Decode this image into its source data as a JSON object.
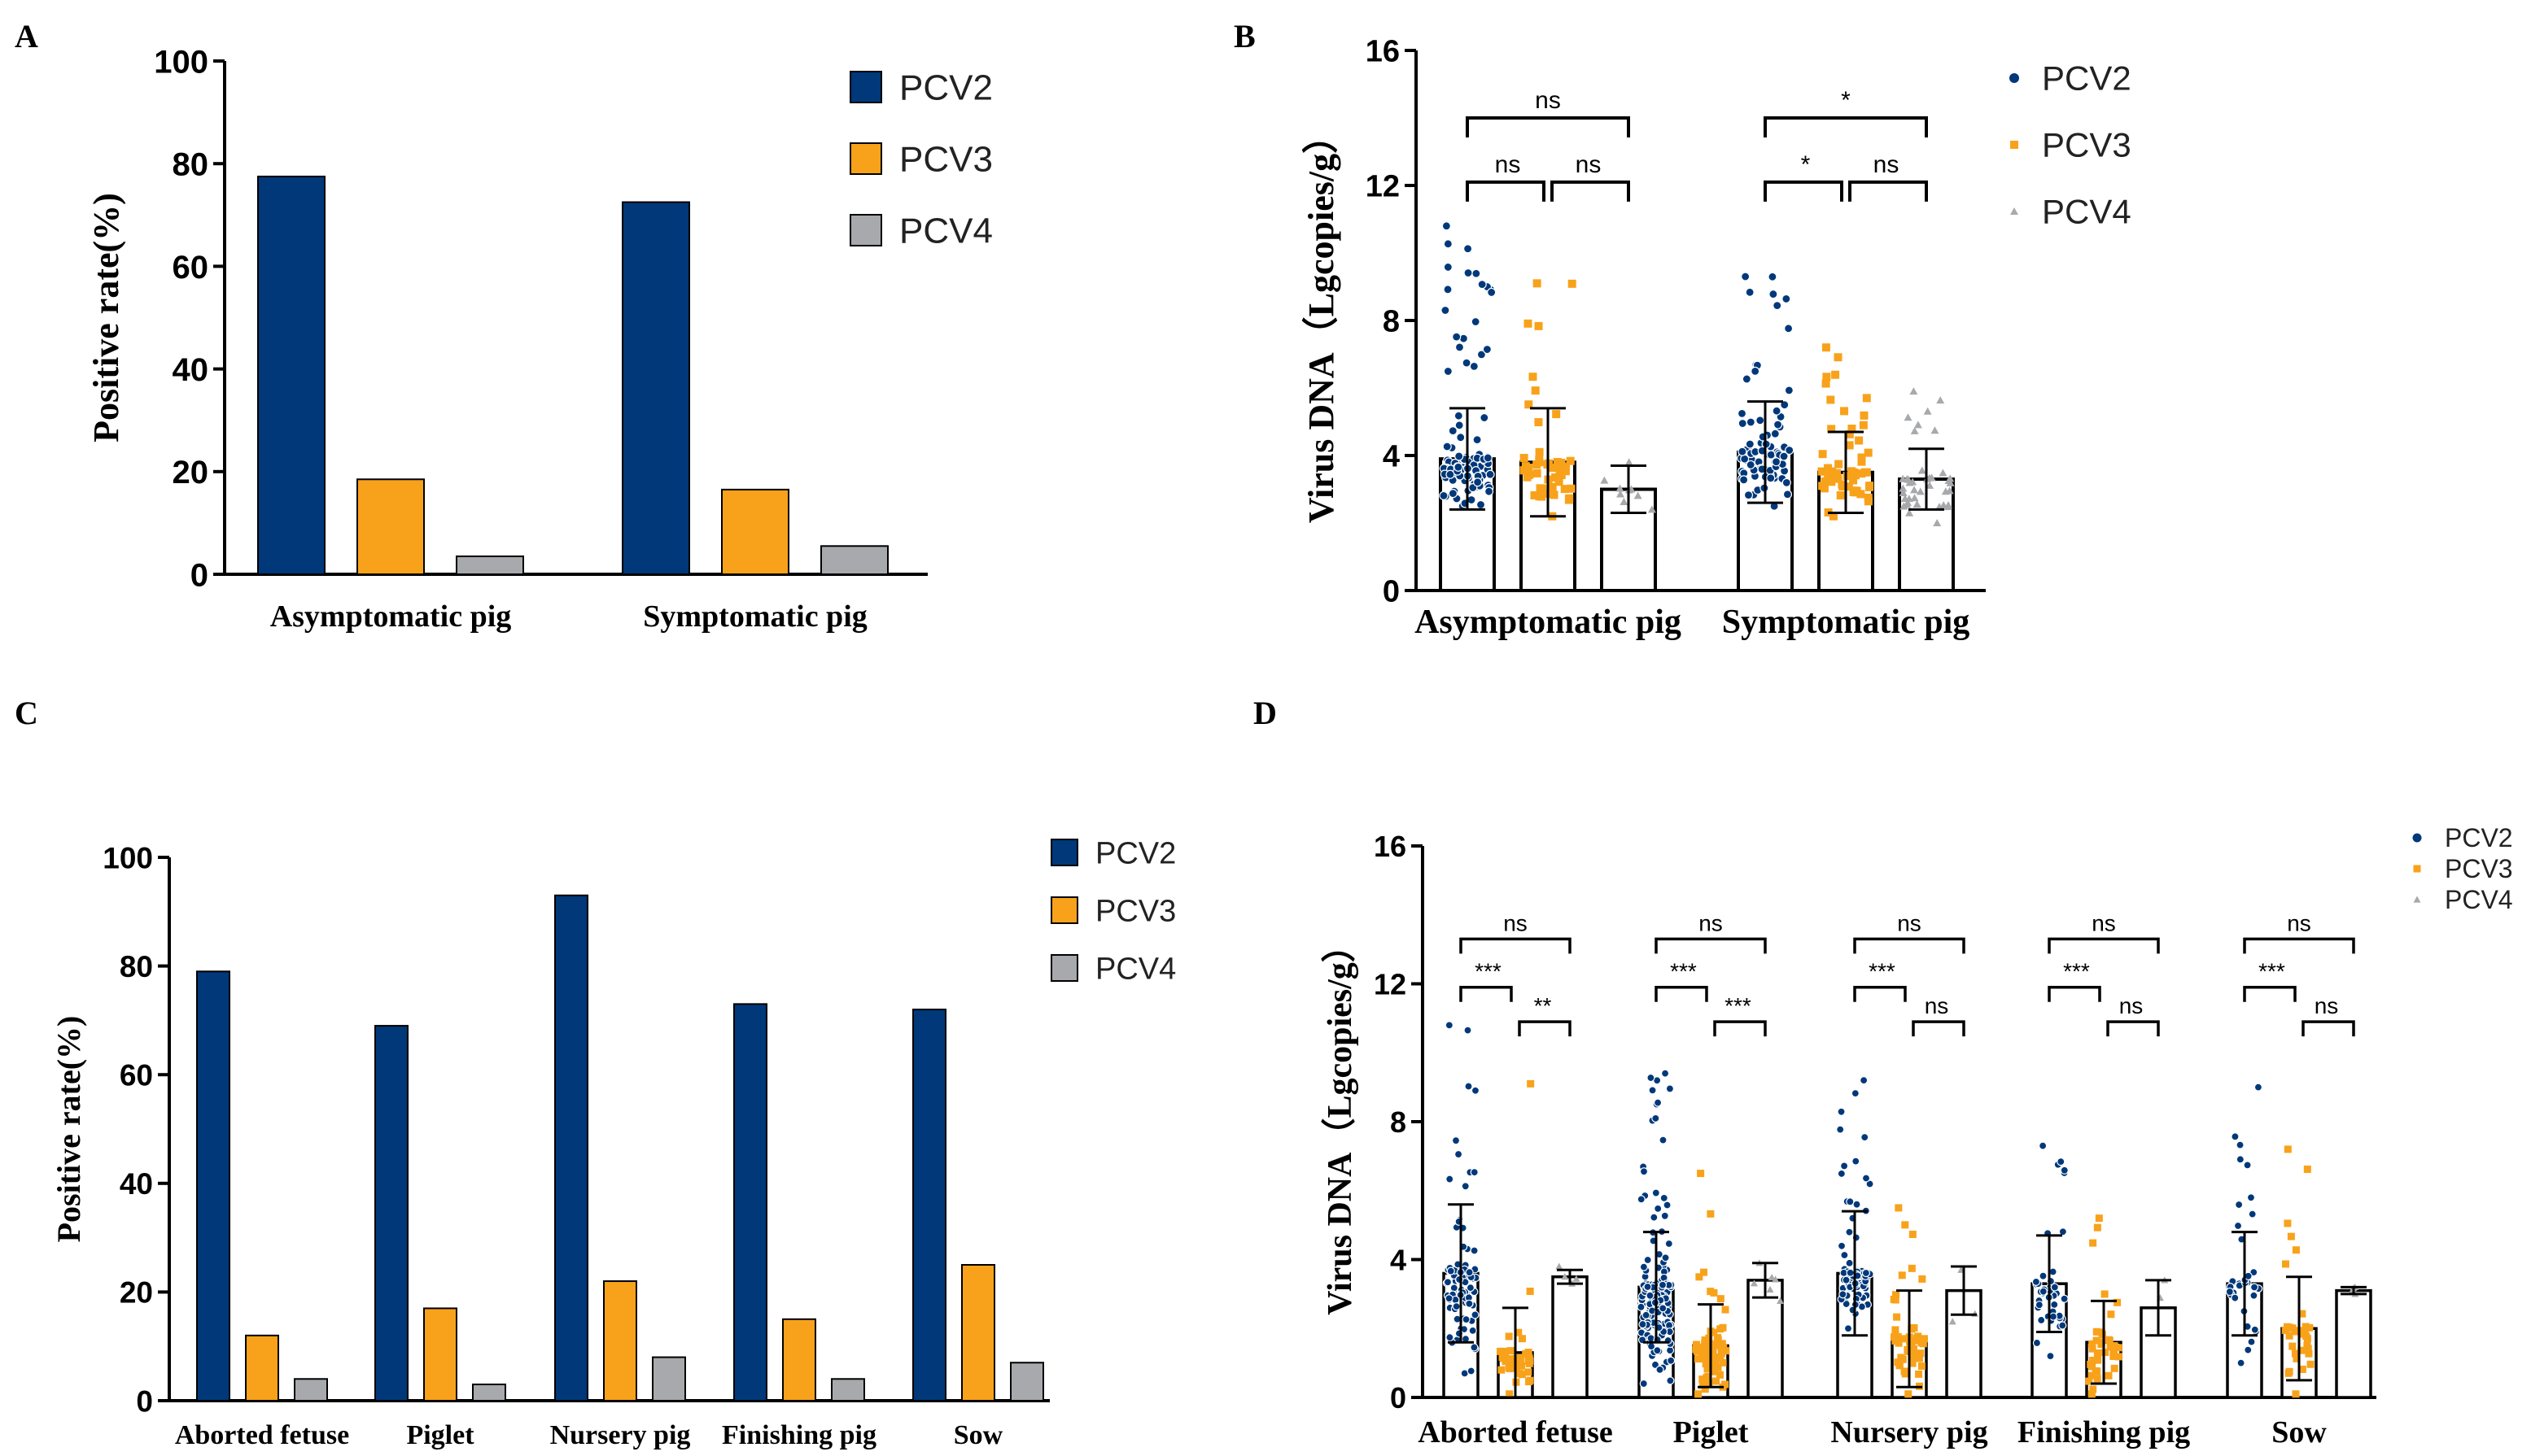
{
  "colors": {
    "PCV2": "#00387a",
    "PCV3": "#f8a21b",
    "PCV4": "#a7a9ac"
  },
  "chart_data": [
    {
      "panel": "A",
      "type": "bar",
      "title": "",
      "xlabel": "",
      "ylabel": "Positive rate(%)",
      "ylim": [
        0,
        100
      ],
      "yticks": [
        "0",
        "20",
        "40",
        "60",
        "80",
        "100"
      ],
      "categories": [
        "Asymptomatic pig",
        "Symptomatic pig"
      ],
      "legend": [
        "PCV2",
        "PCV3",
        "PCV4"
      ],
      "series": [
        {
          "name": "PCV2",
          "values": [
            77.5,
            72.5
          ]
        },
        {
          "name": "PCV3",
          "values": [
            18.5,
            16.5
          ]
        },
        {
          "name": "PCV4",
          "values": [
            3.5,
            5.5
          ]
        }
      ]
    },
    {
      "panel": "B",
      "type": "scatter",
      "title": "",
      "xlabel": "",
      "ylabel": "Virus DNA（Lgcopies/g）",
      "ylim": [
        0,
        16
      ],
      "yticks": [
        "0",
        "4",
        "8",
        "12",
        "16"
      ],
      "categories": [
        "Asymptomatic pig",
        "Symptomatic pig"
      ],
      "legend": [
        "PCV2",
        "PCV3",
        "PCV4"
      ],
      "series": [
        {
          "name": "PCV2",
          "means": [
            3.9,
            4.1
          ],
          "sd": [
            1.5,
            1.5
          ],
          "max": [
            10.8,
            9.3
          ],
          "min": [
            2.5,
            2.5
          ],
          "n": [
            110,
            85
          ]
        },
        {
          "name": "PCV3",
          "means": [
            3.8,
            3.5
          ],
          "sd": [
            1.6,
            1.2
          ],
          "max": [
            9.1,
            7.2
          ],
          "min": [
            2.2,
            2.2
          ],
          "n": [
            50,
            55
          ]
        },
        {
          "name": "PCV4",
          "means": [
            3.0,
            3.3
          ],
          "sd": [
            0.7,
            0.9
          ],
          "max": [
            3.8,
            5.9
          ],
          "min": [
            2.4,
            2.0
          ],
          "n": [
            9,
            40
          ]
        }
      ],
      "significance": [
        {
          "group": 0,
          "pair": "PCV2-PCV4",
          "label": "ns"
        },
        {
          "group": 0,
          "pair": "PCV2-PCV3",
          "label": "ns"
        },
        {
          "group": 0,
          "pair": "PCV3-PCV4",
          "label": "ns"
        },
        {
          "group": 1,
          "pair": "PCV2-PCV4",
          "label": "*"
        },
        {
          "group": 1,
          "pair": "PCV2-PCV3",
          "label": "*"
        },
        {
          "group": 1,
          "pair": "PCV3-PCV4",
          "label": "ns"
        }
      ]
    },
    {
      "panel": "C",
      "type": "bar",
      "title": "",
      "xlabel": "",
      "ylabel": "Positive rate(%)",
      "ylim": [
        0,
        100
      ],
      "yticks": [
        "0",
        "20",
        "40",
        "60",
        "80",
        "100"
      ],
      "categories": [
        "Aborted fetuse",
        "Piglet",
        "Nursery pig",
        "Finishing pig",
        "Sow"
      ],
      "legend": [
        "PCV2",
        "PCV3",
        "PCV4"
      ],
      "series": [
        {
          "name": "PCV2",
          "values": [
            79,
            69,
            93,
            73,
            72
          ]
        },
        {
          "name": "PCV3",
          "values": [
            12,
            17,
            22,
            15,
            25
          ]
        },
        {
          "name": "PCV4",
          "values": [
            4,
            3,
            8,
            4,
            7
          ]
        }
      ]
    },
    {
      "panel": "D",
      "type": "scatter",
      "title": "",
      "xlabel": "",
      "ylabel": "Virus DNA（Lgcopies/g）",
      "ylim": [
        0,
        16
      ],
      "yticks": [
        "0",
        "4",
        "8",
        "12",
        "16"
      ],
      "categories": [
        "Aborted fetuse",
        "Piglet",
        "Nursery pig",
        "Finishing pig",
        "Sow"
      ],
      "legend": [
        "PCV2",
        "PCV3",
        "PCV4"
      ],
      "series": [
        {
          "name": "PCV2",
          "means": [
            3.6,
            3.2,
            3.6,
            3.3,
            3.3
          ],
          "sd": [
            2.0,
            1.6,
            1.8,
            1.4,
            1.5
          ],
          "max": [
            10.8,
            9.4,
            9.2,
            7.3,
            9.0
          ],
          "min": [
            0.7,
            0.4,
            2.0,
            1.2,
            1.0
          ],
          "n": [
            90,
            160,
            90,
            40,
            35
          ]
        },
        {
          "name": "PCV3",
          "means": [
            1.3,
            1.5,
            1.7,
            1.6,
            2.0
          ],
          "sd": [
            1.3,
            1.2,
            1.4,
            1.2,
            1.5
          ],
          "max": [
            9.1,
            6.5,
            5.5,
            5.2,
            7.2
          ],
          "min": [
            0.1,
            0.1,
            0.1,
            0.1,
            0.1
          ],
          "n": [
            45,
            70,
            55,
            40,
            35
          ]
        },
        {
          "name": "PCV4",
          "means": [
            3.5,
            3.4,
            3.1,
            2.6,
            3.1
          ],
          "sd": [
            0.2,
            0.5,
            0.7,
            0.8,
            0.1
          ],
          "max": [
            3.8,
            3.9,
            3.7,
            3.4,
            3.2
          ],
          "min": [
            3.3,
            2.8,
            2.2,
            1.8,
            3.0
          ],
          "n": [
            4,
            6,
            3,
            2,
            4
          ]
        }
      ],
      "significance": [
        {
          "group": 0,
          "pair": "PCV2-PCV4",
          "label": "ns"
        },
        {
          "group": 0,
          "pair": "PCV2-PCV3",
          "label": "***"
        },
        {
          "group": 0,
          "pair": "PCV3-PCV4",
          "label": "**"
        },
        {
          "group": 1,
          "pair": "PCV2-PCV4",
          "label": "ns"
        },
        {
          "group": 1,
          "pair": "PCV2-PCV3",
          "label": "***"
        },
        {
          "group": 1,
          "pair": "PCV3-PCV4",
          "label": "***"
        },
        {
          "group": 2,
          "pair": "PCV2-PCV4",
          "label": "ns"
        },
        {
          "group": 2,
          "pair": "PCV2-PCV3",
          "label": "***"
        },
        {
          "group": 2,
          "pair": "PCV3-PCV4",
          "label": "ns"
        },
        {
          "group": 3,
          "pair": "PCV2-PCV4",
          "label": "ns"
        },
        {
          "group": 3,
          "pair": "PCV2-PCV3",
          "label": "***"
        },
        {
          "group": 3,
          "pair": "PCV3-PCV4",
          "label": "ns"
        },
        {
          "group": 4,
          "pair": "PCV2-PCV4",
          "label": "ns"
        },
        {
          "group": 4,
          "pair": "PCV2-PCV3",
          "label": "***"
        },
        {
          "group": 4,
          "pair": "PCV3-PCV4",
          "label": "ns"
        }
      ]
    }
  ]
}
